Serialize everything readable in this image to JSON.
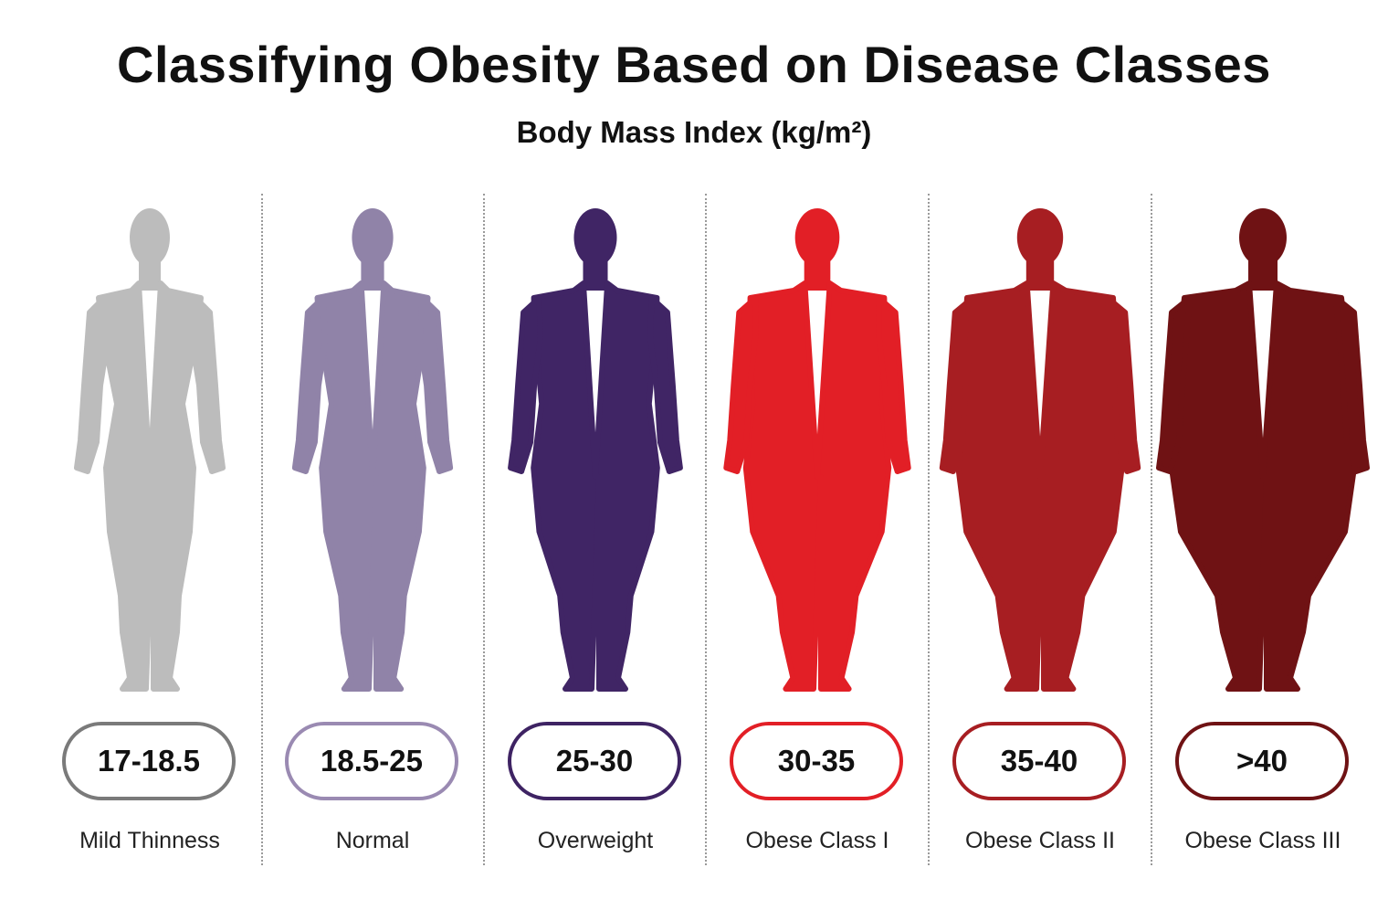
{
  "title": "Classifying Obesity Based on Disease Classes",
  "subtitle": "Body Mass Index (kg/m²)",
  "classes": [
    {
      "range": "17-18.5",
      "label": "Mild Thinness",
      "color": "#bcbcbc",
      "border": "#7a7a7a",
      "build": 0.0,
      "icon": "thin-body-silhouette-icon"
    },
    {
      "range": "18.5-25",
      "label": "Normal",
      "color": "#9083a8",
      "border": "#9a8ab2",
      "build": 0.15,
      "icon": "normal-body-silhouette-icon"
    },
    {
      "range": "25-30",
      "label": "Overweight",
      "color": "#402565",
      "border": "#3e2363",
      "build": 0.38,
      "icon": "overweight-body-silhouette-icon"
    },
    {
      "range": "30-35",
      "label": "Obese Class I",
      "color": "#e21f26",
      "border": "#e21f26",
      "build": 0.58,
      "icon": "obese-class-1-body-silhouette-icon"
    },
    {
      "range": "35-40",
      "label": "Obese Class II",
      "color": "#a71e22",
      "border": "#a71e22",
      "build": 0.8,
      "icon": "obese-class-2-body-silhouette-icon"
    },
    {
      "range": ">40",
      "label": "Obese Class III",
      "color": "#6f1214",
      "border": "#6f1214",
      "build": 1.0,
      "icon": "obese-class-3-body-silhouette-icon"
    }
  ]
}
